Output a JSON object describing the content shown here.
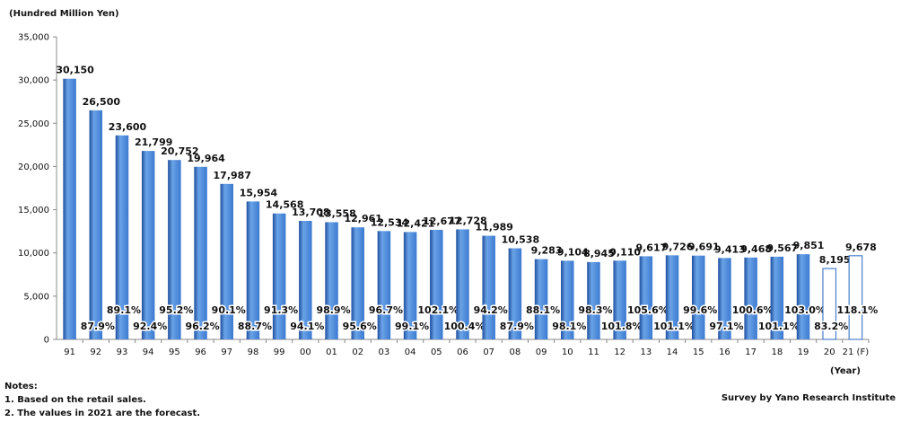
{
  "header": {
    "unit_label": "(Hundred Million Yen)"
  },
  "footer": {
    "year_label": "(Year)",
    "notes_title": "Notes:",
    "note_1": "1. Based on the retail sales.",
    "note_2": "2. The values in 2021 are the forecast.",
    "source": "Survey by Yano Research Institute"
  },
  "colors": {
    "bar_fill_top": "#6aa3e6",
    "bar_fill_mid": "#3c7ad1",
    "bar_fill_bottom": "#1f4f9f",
    "outline_bar_stroke": "#4a7fcc",
    "axis": "#888888"
  },
  "chart_data": {
    "type": "bar",
    "title": "",
    "xlabel": "(Year)",
    "ylabel": "(Hundred Million Yen)",
    "ylim": [
      0,
      35000
    ],
    "yticks": [
      0,
      5000,
      10000,
      15000,
      20000,
      25000,
      30000,
      35000
    ],
    "ytick_labels": [
      "0",
      "5,000",
      "10,000",
      "15,000",
      "20,000",
      "25,000",
      "30,000",
      "35,000"
    ],
    "grid": false,
    "categories": [
      "91",
      "92",
      "93",
      "94",
      "95",
      "96",
      "97",
      "98",
      "99",
      "00",
      "01",
      "02",
      "03",
      "04",
      "05",
      "06",
      "07",
      "08",
      "09",
      "10",
      "11",
      "12",
      "13",
      "14",
      "15",
      "16",
      "17",
      "18",
      "19",
      "20",
      "21 (F)"
    ],
    "values": [
      30150,
      26500,
      23600,
      21799,
      20752,
      19964,
      17987,
      15954,
      14568,
      13708,
      13558,
      12961,
      12534,
      12421,
      12677,
      12728,
      11989,
      10538,
      9283,
      9104,
      8945,
      9110,
      9617,
      9726,
      9691,
      9413,
      9468,
      9567,
      9851,
      8195,
      9678
    ],
    "value_labels": [
      "30,150",
      "26,500",
      "23,600",
      "21,799",
      "20,752",
      "19,964",
      "17,987",
      "15,954",
      "14,568",
      "13,708",
      "13,558",
      "12,961",
      "12,534",
      "12,421",
      "12,677",
      "12,728",
      "11,989",
      "10,538",
      "9,283",
      "9,104",
      "8,945",
      "9,110",
      "9,617",
      "9,726",
      "9,691",
      "9,413",
      "9,468",
      "9,567",
      "9,851",
      "8,195",
      "9,678"
    ],
    "yoy_labels": [
      "",
      "87.9%",
      "89.1%",
      "92.4%",
      "95.2%",
      "96.2%",
      "90.1%",
      "88.7%",
      "91.3%",
      "94.1%",
      "98.9%",
      "95.6%",
      "96.7%",
      "99.1%",
      "102.1%",
      "100.4%",
      "94.2%",
      "87.9%",
      "88.1%",
      "98.1%",
      "98.3%",
      "101.8%",
      "105.6%",
      "101.1%",
      "99.6%",
      "97.1%",
      "100.6%",
      "101.1%",
      "103.0%",
      "83.2%",
      "118.1%"
    ],
    "outlined_bars": [
      "20",
      "21 (F)"
    ]
  }
}
